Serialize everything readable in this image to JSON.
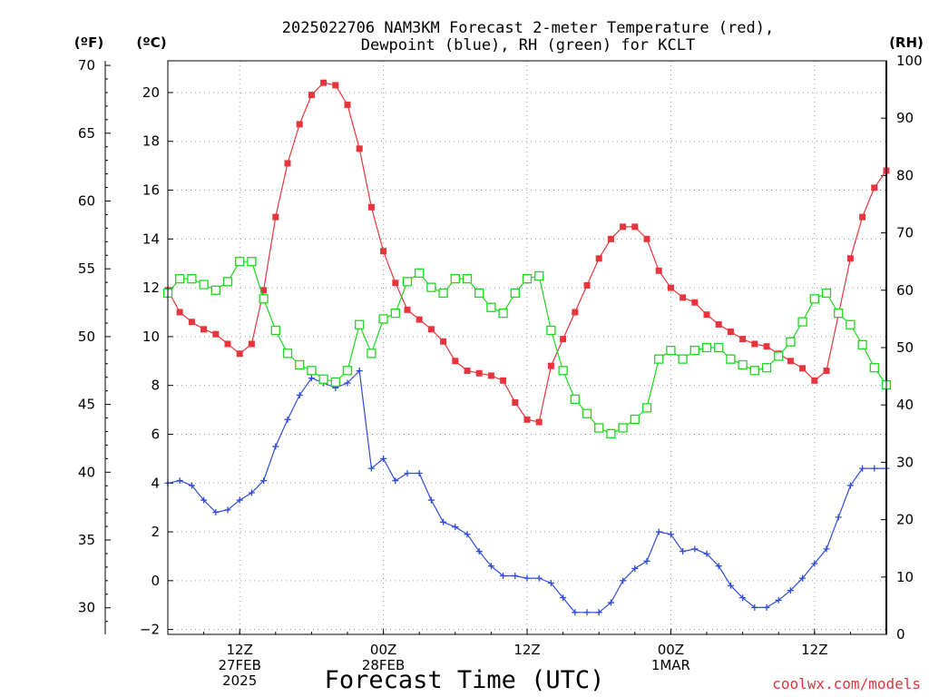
{
  "title_line1": "2025022706 NAM3KM Forecast 2-meter Temperature (red),",
  "title_line2": "Dewpoint (blue), RH (green) for KCLT",
  "unit_f": "(ºF)",
  "unit_c": "(ºC)",
  "unit_rh": "(RH)",
  "xlabel": "Forecast Time (UTC)",
  "credit": "coolwx.com/models",
  "colors": {
    "temperature": "#e8343c",
    "dewpoint": "#2f4bd8",
    "rh": "#1ed81e"
  },
  "chart_data": {
    "type": "line",
    "title": "2025022706 NAM3KM Forecast 2-meter Temperature (red), Dewpoint (blue), RH (green) for KCLT",
    "xlabel": "Forecast Time (UTC)",
    "x_unit": "forecast hour from 2025-02-27 06Z",
    "x": [
      0,
      1,
      2,
      3,
      4,
      5,
      6,
      7,
      8,
      9,
      10,
      11,
      12,
      13,
      14,
      15,
      16,
      17,
      18,
      19,
      20,
      21,
      22,
      23,
      24,
      25,
      26,
      27,
      28,
      29,
      30,
      31,
      32,
      33,
      34,
      35,
      36,
      37,
      38,
      39,
      40,
      41,
      42,
      43,
      44,
      45,
      46,
      47,
      48,
      49,
      50,
      51,
      52,
      53,
      54,
      55,
      56,
      57,
      58,
      59,
      60
    ],
    "xlim": [
      0,
      60
    ],
    "x_ticks": [
      {
        "x": 6,
        "labels": [
          "12Z",
          "27FEB",
          "2025"
        ]
      },
      {
        "x": 18,
        "labels": [
          "00Z",
          "28FEB"
        ]
      },
      {
        "x": 30,
        "labels": [
          "12Z"
        ]
      },
      {
        "x": 42,
        "labels": [
          "00Z",
          "1MAR"
        ]
      },
      {
        "x": 54,
        "labels": [
          "12Z"
        ]
      }
    ],
    "y_left_c": {
      "label": "(ºC)",
      "range": [
        -2.2,
        21.3
      ],
      "ticks": [
        "−2",
        "0",
        "2",
        "4",
        "6",
        "8",
        "10",
        "12",
        "14",
        "16",
        "18",
        "20"
      ]
    },
    "y_left_f": {
      "label": "(ºF)",
      "ticks": [
        "30",
        "35",
        "40",
        "45",
        "50",
        "55",
        "60",
        "65",
        "70"
      ]
    },
    "y_right_rh": {
      "label": "(RH)",
      "range": [
        0,
        100
      ],
      "ticks": [
        "0",
        "10",
        "20",
        "30",
        "40",
        "50",
        "60",
        "70",
        "80",
        "90",
        "100"
      ]
    },
    "grid": true,
    "series": [
      {
        "name": "Temperature (red)",
        "axis": "celsius",
        "marker": "filled-square",
        "values": [
          11.9,
          11.0,
          10.6,
          10.3,
          10.1,
          9.7,
          9.3,
          9.7,
          11.9,
          14.9,
          17.1,
          18.7,
          19.9,
          20.4,
          20.3,
          19.5,
          17.7,
          15.3,
          13.5,
          12.2,
          11.1,
          10.7,
          10.3,
          9.8,
          9.0,
          8.6,
          8.5,
          8.4,
          8.2,
          7.3,
          6.6,
          6.5,
          8.8,
          9.9,
          11.0,
          12.1,
          13.2,
          14.0,
          14.5,
          14.5,
          14.0,
          12.7,
          12.0,
          11.6,
          11.4,
          10.9,
          10.5,
          10.2,
          9.9,
          9.7,
          9.6,
          9.3,
          9.0,
          8.7,
          8.2,
          8.6,
          10.9,
          13.2,
          14.9,
          16.1,
          16.8
        ]
      },
      {
        "name": "Dewpoint (blue)",
        "axis": "celsius",
        "marker": "plus",
        "values": [
          4.0,
          4.1,
          3.9,
          3.3,
          2.8,
          2.9,
          3.3,
          3.6,
          4.1,
          5.5,
          6.6,
          7.6,
          8.3,
          8.1,
          7.9,
          8.1,
          8.6,
          4.6,
          5.0,
          4.1,
          4.4,
          4.4,
          3.3,
          2.4,
          2.2,
          1.9,
          1.2,
          0.6,
          0.2,
          0.2,
          0.1,
          0.1,
          -0.1,
          -0.7,
          -1.3,
          -1.3,
          -1.3,
          -0.9,
          0.0,
          0.5,
          0.8,
          2.0,
          1.9,
          1.2,
          1.3,
          1.1,
          0.6,
          -0.2,
          -0.7,
          -1.1,
          -1.1,
          -0.8,
          -0.4,
          0.1,
          0.7,
          1.3,
          2.6,
          3.9,
          4.6,
          4.6,
          4.6
        ]
      },
      {
        "name": "RH (green)",
        "axis": "rh",
        "marker": "open-square",
        "values": [
          59.5,
          62,
          62,
          61,
          60,
          61.5,
          65,
          65,
          58.5,
          53,
          49,
          47,
          46,
          44.5,
          44,
          46,
          54,
          49,
          55,
          56,
          61.5,
          63,
          60.5,
          59.5,
          62,
          62,
          59.5,
          57,
          56,
          59.5,
          62,
          62.5,
          53,
          46,
          41,
          38.5,
          36,
          35,
          36,
          37.5,
          39.5,
          48,
          49.5,
          48,
          49.5,
          50,
          50,
          48,
          47,
          46,
          46.5,
          48.5,
          51,
          54.5,
          58.5,
          59.5,
          56,
          54,
          50.5,
          46.5,
          43.5
        ]
      }
    ]
  }
}
